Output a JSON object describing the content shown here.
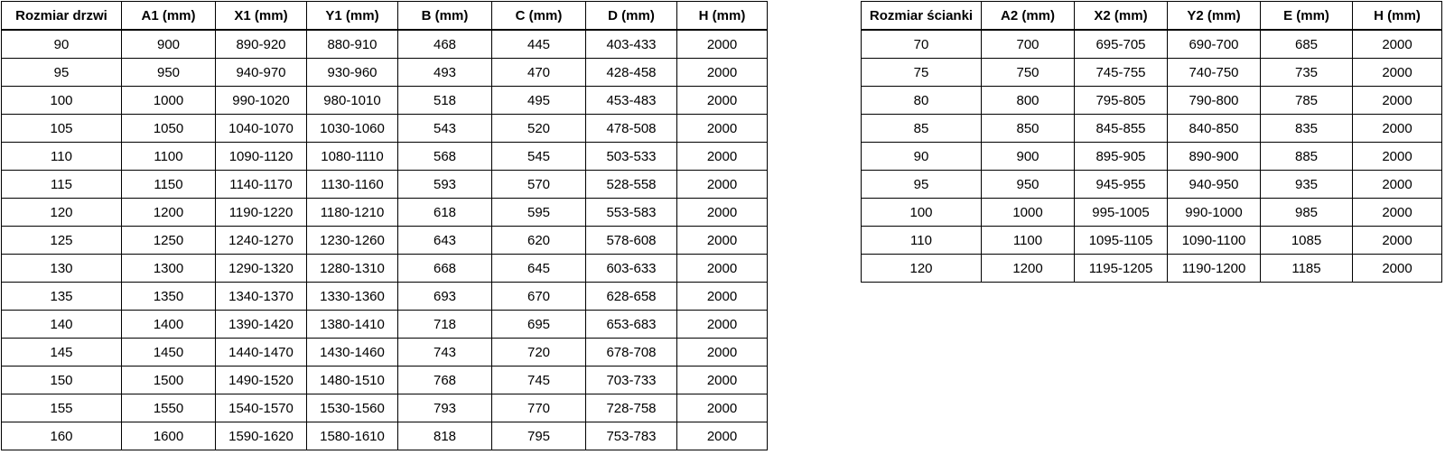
{
  "colors": {
    "background": "#ffffff",
    "border": "#000000",
    "text": "#000000"
  },
  "tables": [
    {
      "id": "door-sizes",
      "headers": [
        "Rozmiar drzwi",
        "A1 (mm)",
        "X1 (mm)",
        "Y1 (mm)",
        "B (mm)",
        "C (mm)",
        "D (mm)",
        "H (mm)"
      ],
      "rows": [
        [
          "90",
          "900",
          "890-920",
          "880-910",
          "468",
          "445",
          "403-433",
          "2000"
        ],
        [
          "95",
          "950",
          "940-970",
          "930-960",
          "493",
          "470",
          "428-458",
          "2000"
        ],
        [
          "100",
          "1000",
          "990-1020",
          "980-1010",
          "518",
          "495",
          "453-483",
          "2000"
        ],
        [
          "105",
          "1050",
          "1040-1070",
          "1030-1060",
          "543",
          "520",
          "478-508",
          "2000"
        ],
        [
          "110",
          "1100",
          "1090-1120",
          "1080-1110",
          "568",
          "545",
          "503-533",
          "2000"
        ],
        [
          "115",
          "1150",
          "1140-1170",
          "1130-1160",
          "593",
          "570",
          "528-558",
          "2000"
        ],
        [
          "120",
          "1200",
          "1190-1220",
          "1180-1210",
          "618",
          "595",
          "553-583",
          "2000"
        ],
        [
          "125",
          "1250",
          "1240-1270",
          "1230-1260",
          "643",
          "620",
          "578-608",
          "2000"
        ],
        [
          "130",
          "1300",
          "1290-1320",
          "1280-1310",
          "668",
          "645",
          "603-633",
          "2000"
        ],
        [
          "135",
          "1350",
          "1340-1370",
          "1330-1360",
          "693",
          "670",
          "628-658",
          "2000"
        ],
        [
          "140",
          "1400",
          "1390-1420",
          "1380-1410",
          "718",
          "695",
          "653-683",
          "2000"
        ],
        [
          "145",
          "1450",
          "1440-1470",
          "1430-1460",
          "743",
          "720",
          "678-708",
          "2000"
        ],
        [
          "150",
          "1500",
          "1490-1520",
          "1480-1510",
          "768",
          "745",
          "703-733",
          "2000"
        ],
        [
          "155",
          "1550",
          "1540-1570",
          "1530-1560",
          "793",
          "770",
          "728-758",
          "2000"
        ],
        [
          "160",
          "1600",
          "1590-1620",
          "1580-1610",
          "818",
          "795",
          "753-783",
          "2000"
        ]
      ]
    },
    {
      "id": "wall-panel-sizes",
      "headers": [
        "Rozmiar ścianki",
        "A2 (mm)",
        "X2 (mm)",
        "Y2 (mm)",
        "E (mm)",
        "H (mm)"
      ],
      "rows": [
        [
          "70",
          "700",
          "695-705",
          "690-700",
          "685",
          "2000"
        ],
        [
          "75",
          "750",
          "745-755",
          "740-750",
          "735",
          "2000"
        ],
        [
          "80",
          "800",
          "795-805",
          "790-800",
          "785",
          "2000"
        ],
        [
          "85",
          "850",
          "845-855",
          "840-850",
          "835",
          "2000"
        ],
        [
          "90",
          "900",
          "895-905",
          "890-900",
          "885",
          "2000"
        ],
        [
          "95",
          "950",
          "945-955",
          "940-950",
          "935",
          "2000"
        ],
        [
          "100",
          "1000",
          "995-1005",
          "990-1000",
          "985",
          "2000"
        ],
        [
          "110",
          "1100",
          "1095-1105",
          "1090-1100",
          "1085",
          "2000"
        ],
        [
          "120",
          "1200",
          "1195-1205",
          "1190-1200",
          "1185",
          "2000"
        ]
      ]
    }
  ]
}
